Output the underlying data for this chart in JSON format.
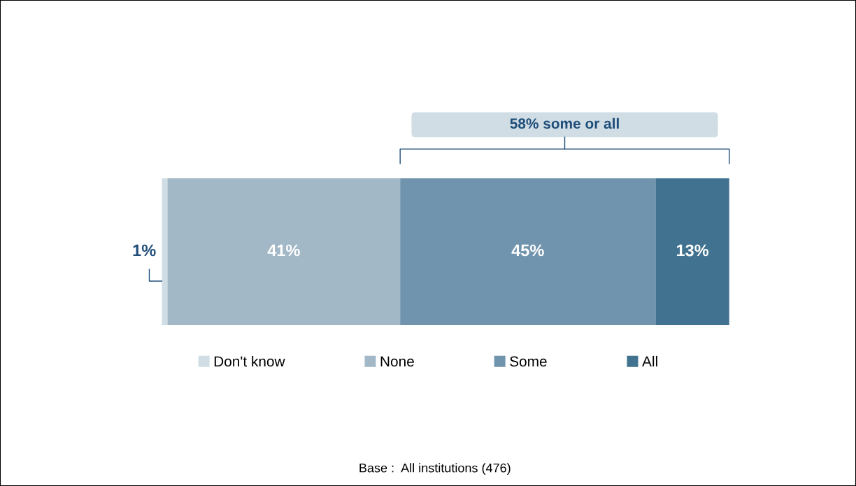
{
  "chart_data": {
    "type": "bar",
    "orientation": "horizontal",
    "stacked": true,
    "categories": [
      null
    ],
    "series": [
      {
        "name": "Don't know",
        "color": "#d0dde5",
        "values": [
          1
        ],
        "value_labels": [
          "1%"
        ]
      },
      {
        "name": "None",
        "color": "#a2b8c7",
        "values": [
          41
        ],
        "value_labels": [
          "41%"
        ]
      },
      {
        "name": "Some",
        "color": "#7094ad",
        "values": [
          45
        ],
        "value_labels": [
          "45%"
        ]
      },
      {
        "name": "All",
        "color": "#41728f",
        "values": [
          13
        ],
        "value_labels": [
          "13%"
        ]
      }
    ],
    "tick_labels": false,
    "legend": "bottom",
    "annotations": [
      "58% some or all",
      "Base :  All institutions (476)"
    ]
  }
}
